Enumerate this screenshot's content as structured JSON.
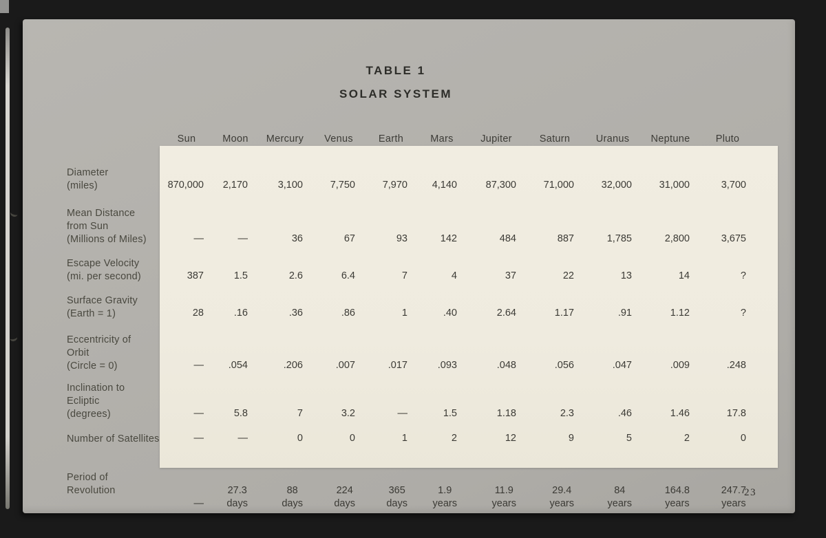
{
  "page": {
    "title_line1": "TABLE 1",
    "title_line2": "SOLAR SYSTEM",
    "page_number": "23"
  },
  "table": {
    "columns": [
      "Sun",
      "Moon",
      "Mercury",
      "Venus",
      "Earth",
      "Mars",
      "Jupiter",
      "Saturn",
      "Uranus",
      "Neptune",
      "Pluto"
    ],
    "rows": [
      {
        "label": [
          "Diameter",
          "(miles)"
        ],
        "values": [
          "870,000",
          "2,170",
          "3,100",
          "7,750",
          "7,970",
          "4,140",
          "87,300",
          "71,000",
          "32,000",
          "31,000",
          "3,700"
        ]
      },
      {
        "label": [
          "Mean Distance",
          "from Sun",
          "(Millions of Miles)"
        ],
        "values": [
          "—",
          "—",
          "36",
          "67",
          "93",
          "142",
          "484",
          "887",
          "1,785",
          "2,800",
          "3,675"
        ]
      },
      {
        "label": [
          "Escape Velocity",
          "(mi. per second)"
        ],
        "values": [
          "387",
          "1.5",
          "2.6",
          "6.4",
          "7",
          "4",
          "37",
          "22",
          "13",
          "14",
          "?"
        ]
      },
      {
        "label": [
          "Surface Gravity",
          "(Earth = 1)"
        ],
        "values": [
          "28",
          ".16",
          ".36",
          ".86",
          "1",
          ".40",
          "2.64",
          "1.17",
          ".91",
          "1.12",
          "?"
        ]
      },
      {
        "label": [
          "Eccentricity of",
          "Orbit",
          "(Circle = 0)"
        ],
        "values": [
          "—",
          ".054",
          ".206",
          ".007",
          ".017",
          ".093",
          ".048",
          ".056",
          ".047",
          ".009",
          ".248"
        ]
      },
      {
        "label": [
          "Inclination to",
          "Ecliptic",
          "(degrees)"
        ],
        "values": [
          "—",
          "5.8",
          "7",
          "3.2",
          "—",
          "1.5",
          "1.18",
          "2.3",
          ".46",
          "1.46",
          "17.8"
        ]
      },
      {
        "label": [
          "Number of Satellites"
        ],
        "values": [
          "—",
          "—",
          "0",
          "0",
          "1",
          "2",
          "12",
          "9",
          "5",
          "2",
          "0"
        ]
      },
      {
        "label": [
          "Period of",
          "Revolution"
        ],
        "values": [
          [
            "—",
            ""
          ],
          [
            "27.3",
            "days"
          ],
          [
            "88",
            "days"
          ],
          [
            "224",
            "days"
          ],
          [
            "365",
            "days"
          ],
          [
            "1.9",
            "years"
          ],
          [
            "11.9",
            "years"
          ],
          [
            "29.4",
            "years"
          ],
          [
            "84",
            "years"
          ],
          [
            "164.8",
            "years"
          ],
          [
            "247.7",
            "years"
          ]
        ]
      }
    ]
  }
}
